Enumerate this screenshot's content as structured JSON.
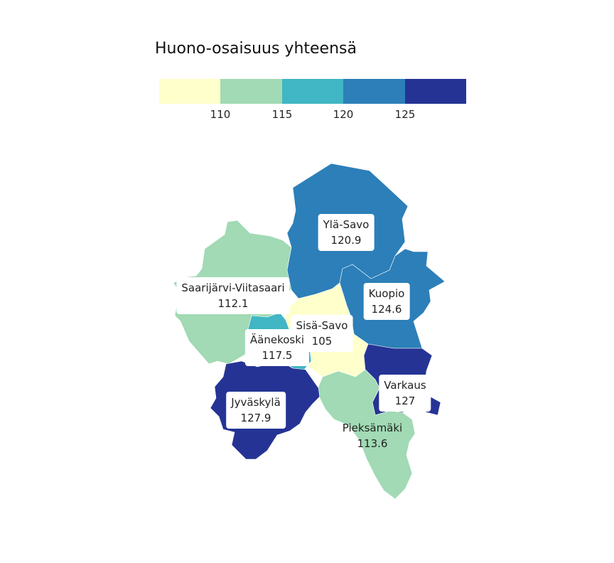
{
  "title": "Huono-osaisuus yhteensä",
  "legend": {
    "colors": [
      "#ffffcc",
      "#a1dab4",
      "#41b6c4",
      "#2c7fb8",
      "#253494"
    ],
    "ticks": [
      "110",
      "115",
      "120",
      "125"
    ]
  },
  "regions": [
    {
      "key": "yla-savo",
      "name": "Ylä-Savo",
      "value": "120.9",
      "color": "#2c7fb8"
    },
    {
      "key": "kuopio",
      "name": "Kuopio",
      "value": "124.6",
      "color": "#2c7fb8"
    },
    {
      "key": "saarijarvi-viitasaari",
      "name": "Saarijärvi-Viitasaari",
      "value": "112.1",
      "color": "#a1dab4"
    },
    {
      "key": "sisa-savo",
      "name": "Sisä-Savo",
      "value": "105",
      "color": "#ffffcc"
    },
    {
      "key": "aanekoski",
      "name": "Äänekoski",
      "value": "117.5",
      "color": "#41b6c4"
    },
    {
      "key": "jyvaskyla",
      "name": "Jyväskylä",
      "value": "127.9",
      "color": "#253494"
    },
    {
      "key": "varkaus",
      "name": "Varkaus",
      "value": "127",
      "color": "#253494"
    },
    {
      "key": "pieksamaki",
      "name": "Pieksämäki",
      "value": "113.6",
      "color": "#a1dab4"
    }
  ]
}
